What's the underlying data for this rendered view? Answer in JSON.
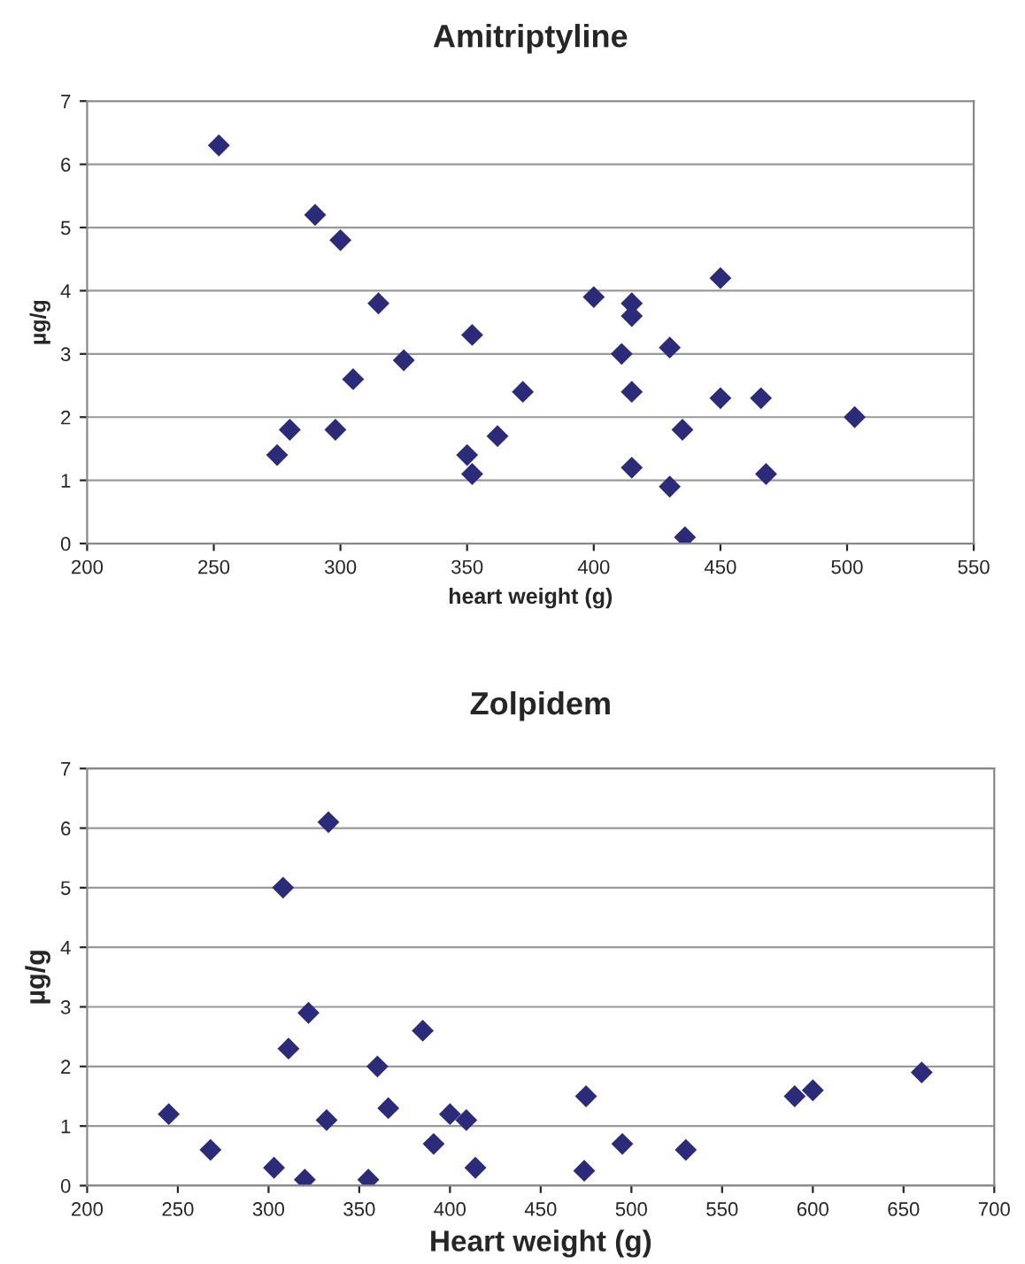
{
  "chart_data": [
    {
      "type": "scatter",
      "title": "Amitriptyline",
      "xlabel": "heart weight (g)",
      "ylabel": "µg/g",
      "xlim": [
        200,
        550
      ],
      "xticks": [
        200,
        250,
        300,
        350,
        400,
        450,
        500,
        550
      ],
      "ylim": [
        0,
        7
      ],
      "yticks": [
        0,
        1,
        2,
        3,
        4,
        5,
        6,
        7
      ],
      "grid": "y",
      "marker": "diamond",
      "series": [
        {
          "color": "#2b2b7a",
          "x": [
            252,
            290,
            300,
            315,
            275,
            280,
            298,
            305,
            325,
            352,
            350,
            352,
            362,
            372,
            400,
            411,
            415,
            415,
            415,
            415,
            430,
            430,
            435,
            436,
            450,
            450,
            466,
            468,
            503
          ],
          "values": [
            6.3,
            5.2,
            4.8,
            3.8,
            1.4,
            1.8,
            1.8,
            2.6,
            2.9,
            3.3,
            1.4,
            1.1,
            1.7,
            2.4,
            3.9,
            3.0,
            3.8,
            3.6,
            2.4,
            1.2,
            3.1,
            0.9,
            1.8,
            0.1,
            4.2,
            2.3,
            2.3,
            1.1,
            2.0
          ]
        }
      ]
    },
    {
      "type": "scatter",
      "title": "Zolpidem",
      "xlabel": "Heart weight (g)",
      "ylabel": "µg/g",
      "xlim": [
        200,
        700
      ],
      "xticks": [
        200,
        250,
        300,
        350,
        400,
        450,
        500,
        550,
        600,
        650,
        700
      ],
      "ylim": [
        0,
        7
      ],
      "yticks": [
        0,
        1,
        2,
        3,
        4,
        5,
        6,
        7
      ],
      "grid": "y",
      "marker": "diamond",
      "series": [
        {
          "color": "#2b2b7a",
          "x": [
            245,
            268,
            303,
            308,
            311,
            320,
            322,
            332,
            333,
            355,
            360,
            366,
            385,
            391,
            400,
            409,
            414,
            474,
            475,
            495,
            530,
            590,
            600,
            660
          ],
          "values": [
            1.2,
            0.6,
            0.3,
            5.0,
            2.3,
            0.1,
            2.9,
            1.1,
            6.1,
            0.1,
            2.0,
            1.3,
            2.6,
            0.7,
            1.2,
            1.1,
            0.3,
            0.25,
            1.5,
            0.7,
            0.6,
            1.5,
            1.6,
            1.9
          ]
        }
      ]
    }
  ]
}
